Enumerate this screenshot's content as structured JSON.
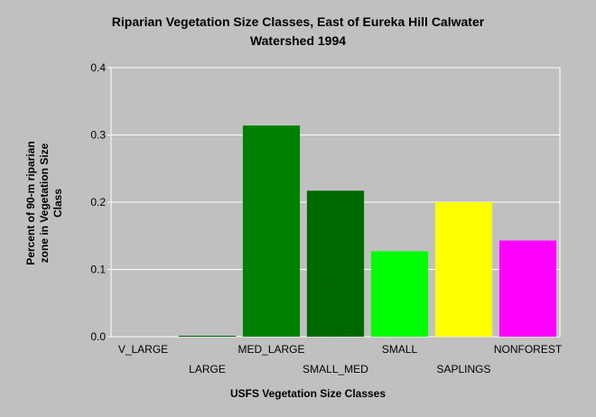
{
  "chart_data": {
    "type": "bar",
    "title_lines": [
      "Riparian Vegetation Size Classes, East of Eureka Hill Calwater",
      "Watershed 1994"
    ],
    "xlabel": "USFS Vegetation Size Classes",
    "ylabel_lines": [
      "Percent of 90-m riparian",
      "zone in Vegetation Size",
      "Class"
    ],
    "categories": [
      "V_LARGE",
      "LARGE",
      "MED_LARGE",
      "SMALL_MED",
      "SMALL",
      "SAPLINGS",
      "NONFOREST"
    ],
    "values": [
      0.0,
      0.001,
      0.314,
      0.217,
      0.127,
      0.2,
      0.143
    ],
    "colors": [
      "#000000",
      "#006400",
      "#008000",
      "#008000",
      "#00ff00",
      "#ffff00",
      "#ff00ff"
    ],
    "hatched": [
      false,
      false,
      false,
      true,
      false,
      false,
      false
    ],
    "ylim": [
      0,
      0.4
    ],
    "yticks": [
      "0.0",
      "0.1",
      "0.2",
      "0.3",
      "0.4"
    ],
    "grid": true
  }
}
